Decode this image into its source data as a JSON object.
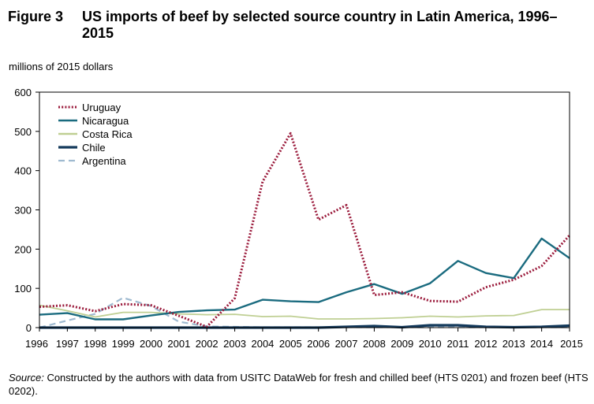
{
  "figure": {
    "number": "Figure 3",
    "title": "US imports of beef by selected source country in Latin America, 1996–2015"
  },
  "source": {
    "label": "Source:",
    "text": "Constructed by the authors with data from USITC DataWeb for fresh and chilled beef (HTS 0201) and frozen beef (HTS 0202)."
  },
  "chart_data": {
    "type": "line",
    "title": "US imports of beef by selected source country in Latin America, 1996–2015",
    "ylabel": "millions of 2015 dollars",
    "xlabel": "",
    "ylim": [
      0,
      600
    ],
    "yticks": [
      "0",
      "100",
      "200",
      "300",
      "400",
      "500",
      "600"
    ],
    "x": [
      "1996",
      "1997",
      "1998",
      "1999",
      "2000",
      "2001",
      "2002",
      "2003",
      "2004",
      "2005",
      "2006",
      "2007",
      "2008",
      "2009",
      "2010",
      "2011",
      "2012",
      "2013",
      "2014",
      "2015"
    ],
    "legend_position": "top-left",
    "series": [
      {
        "name": "Uruguay",
        "color": "#9b1b3c",
        "style": "dotted",
        "values": [
          53,
          57,
          42,
          60,
          57,
          30,
          2,
          75,
          372,
          495,
          275,
          312,
          83,
          90,
          68,
          66,
          103,
          122,
          157,
          235
        ]
      },
      {
        "name": "Nicaragua",
        "color": "#1a6b7f",
        "style": "solid",
        "values": [
          33,
          37,
          21,
          21,
          31,
          40,
          44,
          46,
          71,
          67,
          65,
          90,
          111,
          86,
          113,
          170,
          139,
          126,
          227,
          177
        ]
      },
      {
        "name": "Costa Rica",
        "color": "#bfcf93",
        "style": "solid",
        "values": [
          57,
          43,
          27,
          39,
          39,
          35,
          33,
          34,
          28,
          29,
          22,
          22,
          23,
          25,
          29,
          27,
          30,
          31,
          46,
          46
        ]
      },
      {
        "name": "Chile",
        "color": "#143a5c",
        "style": "solid",
        "values": [
          0,
          0,
          0,
          0,
          0,
          0,
          0,
          0,
          0,
          0,
          0,
          2,
          4,
          1,
          6,
          6,
          2,
          1,
          2,
          5
        ]
      },
      {
        "name": "Argentina",
        "color": "#9fbad0",
        "style": "dashed",
        "values": [
          0,
          18,
          35,
          76,
          55,
          15,
          3,
          2,
          1,
          1,
          1,
          1,
          1,
          1,
          1,
          1,
          1,
          1,
          1,
          1
        ]
      }
    ]
  }
}
